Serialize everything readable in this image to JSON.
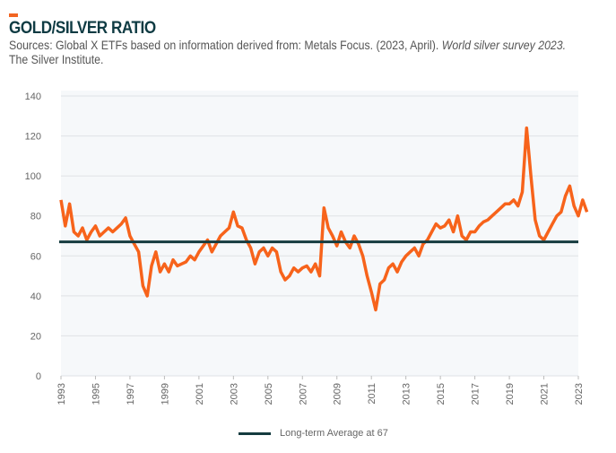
{
  "header": {
    "title": "GOLD/SILVER RATIO",
    "source_prefix": "Sources: Global X ETFs based on information derived from: Metals Focus. (2023, April). ",
    "source_italic": "World silver survey 2023.",
    "source_suffix": "The Silver Institute."
  },
  "chart_data": {
    "type": "line",
    "title": "GOLD/SILVER RATIO",
    "xlabel": "",
    "ylabel": "",
    "ylim": [
      0,
      140
    ],
    "yticks": [
      0,
      20,
      40,
      60,
      80,
      100,
      120,
      140
    ],
    "xlim": [
      1993,
      2023
    ],
    "xticks": [
      "1993",
      "1995",
      "1997",
      "1999",
      "2001",
      "2003",
      "2005",
      "2007",
      "2009",
      "2011",
      "2013",
      "2015",
      "2017",
      "2019",
      "2021",
      "2023"
    ],
    "grid": true,
    "legend_position": "bottom",
    "colors": {
      "series": "#f7631b",
      "average": "#153b3f",
      "plot_bg": "#f6f8fa"
    },
    "series": [
      {
        "x_start": 1993,
        "x_step": 0.25,
        "values": [
          88,
          75,
          86,
          72,
          70,
          74,
          68,
          72,
          75,
          70,
          72,
          74,
          72,
          74,
          76,
          79,
          70,
          66,
          62,
          45,
          40,
          55,
          62,
          52,
          56,
          52,
          58,
          55,
          56,
          57,
          60,
          58,
          62,
          65,
          68,
          62,
          66,
          70,
          72,
          74,
          82,
          75,
          74,
          68,
          64,
          56,
          62,
          64,
          60,
          64,
          62,
          52,
          48,
          50,
          54,
          52,
          54,
          55,
          52,
          56,
          50,
          84,
          74,
          70,
          65,
          72,
          67,
          64,
          70,
          66,
          60,
          50,
          42,
          33,
          46,
          48,
          54,
          56,
          52,
          57,
          60,
          62,
          64,
          60,
          66,
          68,
          72,
          76,
          74,
          75,
          78,
          72,
          80,
          70,
          68,
          72,
          72,
          75,
          77,
          78,
          80,
          82,
          84,
          86,
          86,
          88,
          85,
          92,
          124,
          100,
          78,
          70,
          68,
          72,
          76,
          80,
          82,
          90,
          95,
          85,
          80,
          88,
          82
        ]
      }
    ],
    "reference_line": {
      "value": 67,
      "label": "Long-term Average at 67"
    }
  }
}
